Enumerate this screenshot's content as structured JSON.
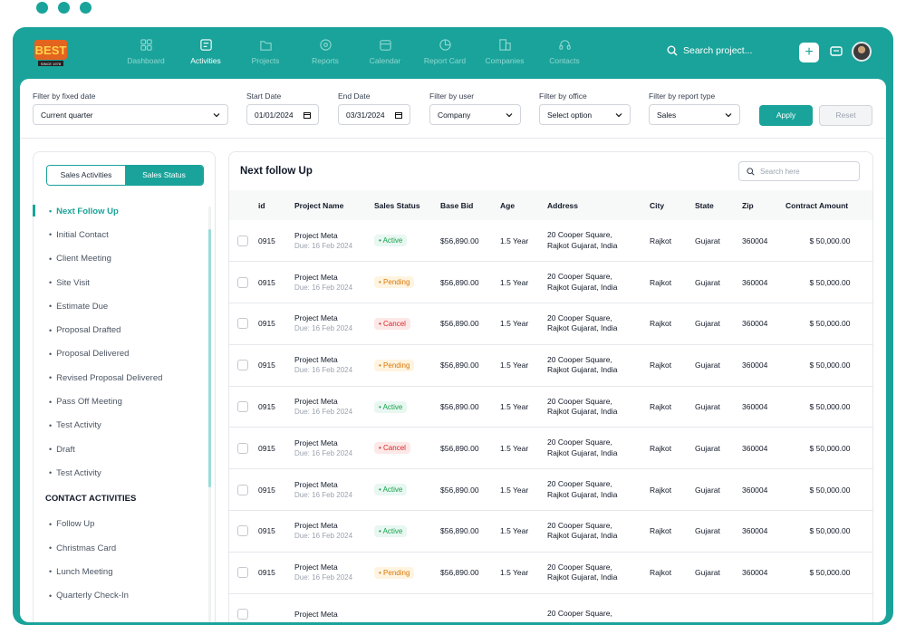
{
  "colors": {
    "primary": "#1aa39a",
    "accent": "#e87a3c"
  },
  "nav": {
    "items": [
      {
        "label": "Dashboard",
        "icon": "grid-icon",
        "active": false
      },
      {
        "label": "Activities",
        "icon": "activity-icon",
        "active": true
      },
      {
        "label": "Projects",
        "icon": "folder-icon",
        "active": false
      },
      {
        "label": "Reports",
        "icon": "report-icon",
        "active": false
      },
      {
        "label": "Calendar",
        "icon": "calendar-icon",
        "active": false
      },
      {
        "label": "Report Card",
        "icon": "pie-icon",
        "active": false
      },
      {
        "label": "Companies",
        "icon": "building-icon",
        "active": false
      },
      {
        "label": "Contacts",
        "icon": "headset-icon",
        "active": false
      }
    ],
    "search_placeholder": "Search project...",
    "add_label": "+"
  },
  "filters": {
    "fixed_date": {
      "label": "Filter by fixed date",
      "value": "Current quarter"
    },
    "start_date": {
      "label": "Start Date",
      "value": "01/01/2024"
    },
    "end_date": {
      "label": "End Date",
      "value": "03/31/2024"
    },
    "user": {
      "label": "Filter by user",
      "value": "Company"
    },
    "office": {
      "label": "Filter by office",
      "value": "Select option"
    },
    "report_type": {
      "label": "Filter by report type",
      "value": "Sales"
    },
    "apply_label": "Apply",
    "reset_label": "Reset"
  },
  "sidebar": {
    "tabs": [
      "Sales Activities",
      "Sales Status"
    ],
    "items": [
      "Next Follow Up",
      "Initial Contact",
      "Client Meeting",
      "Site Visit",
      "Estimate Due",
      "Proposal Drafted",
      "Proposal Delivered",
      "Revised Proposal Delivered",
      "Pass Off Meeting",
      "Test Activity",
      "Draft",
      "Test Activity"
    ],
    "section_title": "CONTACT ACTIVITIES",
    "contact_items": [
      "Follow Up",
      "Christmas Card",
      "Lunch Meeting",
      "Quarterly Check-In"
    ]
  },
  "table": {
    "title": "Next follow Up",
    "search_placeholder": "Search here",
    "columns": [
      "id",
      "Project Name",
      "Sales Status",
      "Base Bid",
      "Age",
      "Address",
      "City",
      "State",
      "Zip",
      "Contract Amount"
    ],
    "rows": [
      {
        "id": "0915",
        "name": "Project Meta",
        "due": "Due: 16 Feb 2024",
        "status": "Active",
        "bid": "$56,890.00",
        "age": "1.5 Year",
        "addr1": "20 Cooper Square,",
        "addr2": "Rajkot Gujarat, India",
        "city": "Rajkot",
        "state": "Gujarat",
        "zip": "360004",
        "amount": "$ 50,000.00"
      },
      {
        "id": "0915",
        "name": "Project Meta",
        "due": "Due: 16 Feb 2024",
        "status": "Pending",
        "bid": "$56,890.00",
        "age": "1.5 Year",
        "addr1": "20 Cooper Square,",
        "addr2": "Rajkot Gujarat, India",
        "city": "Rajkot",
        "state": "Gujarat",
        "zip": "360004",
        "amount": "$ 50,000.00"
      },
      {
        "id": "0915",
        "name": "Project Meta",
        "due": "Due: 16 Feb 2024",
        "status": "Cancel",
        "bid": "$56,890.00",
        "age": "1.5 Year",
        "addr1": "20 Cooper Square,",
        "addr2": "Rajkot Gujarat, India",
        "city": "Rajkot",
        "state": "Gujarat",
        "zip": "360004",
        "amount": "$ 50,000.00"
      },
      {
        "id": "0915",
        "name": "Project Meta",
        "due": "Due: 16 Feb 2024",
        "status": "Pending",
        "bid": "$56,890.00",
        "age": "1.5 Year",
        "addr1": "20 Cooper Square,",
        "addr2": "Rajkot Gujarat, India",
        "city": "Rajkot",
        "state": "Gujarat",
        "zip": "360004",
        "amount": "$ 50,000.00"
      },
      {
        "id": "0915",
        "name": "Project Meta",
        "due": "Due: 16 Feb 2024",
        "status": "Active",
        "bid": "$56,890.00",
        "age": "1.5 Year",
        "addr1": "20 Cooper Square,",
        "addr2": "Rajkot Gujarat, India",
        "city": "Rajkot",
        "state": "Gujarat",
        "zip": "360004",
        "amount": "$ 50,000.00"
      },
      {
        "id": "0915",
        "name": "Project Meta",
        "due": "Due: 16 Feb 2024",
        "status": "Cancel",
        "bid": "$56,890.00",
        "age": "1.5 Year",
        "addr1": "20 Cooper Square,",
        "addr2": "Rajkot Gujarat, India",
        "city": "Rajkot",
        "state": "Gujarat",
        "zip": "360004",
        "amount": "$ 50,000.00"
      },
      {
        "id": "0915",
        "name": "Project Meta",
        "due": "Due: 16 Feb 2024",
        "status": "Active",
        "bid": "$56,890.00",
        "age": "1.5 Year",
        "addr1": "20 Cooper Square,",
        "addr2": "Rajkot Gujarat, India",
        "city": "Rajkot",
        "state": "Gujarat",
        "zip": "360004",
        "amount": "$ 50,000.00"
      },
      {
        "id": "0915",
        "name": "Project Meta",
        "due": "Due: 16 Feb 2024",
        "status": "Active",
        "bid": "$56,890.00",
        "age": "1.5 Year",
        "addr1": "20 Cooper Square,",
        "addr2": "Rajkot Gujarat, India",
        "city": "Rajkot",
        "state": "Gujarat",
        "zip": "360004",
        "amount": "$ 50,000.00"
      },
      {
        "id": "0915",
        "name": "Project Meta",
        "due": "Due: 16 Feb 2024",
        "status": "Pending",
        "bid": "$56,890.00",
        "age": "1.5 Year",
        "addr1": "20 Cooper Square,",
        "addr2": "Rajkot Gujarat, India",
        "city": "Rajkot",
        "state": "Gujarat",
        "zip": "360004",
        "amount": "$ 50,000.00"
      },
      {
        "id": "",
        "name": "Project Meta",
        "due": "",
        "status": "",
        "bid": "",
        "age": "",
        "addr1": "20 Cooper Square,",
        "addr2": "",
        "city": "",
        "state": "",
        "zip": "",
        "amount": ""
      }
    ]
  }
}
